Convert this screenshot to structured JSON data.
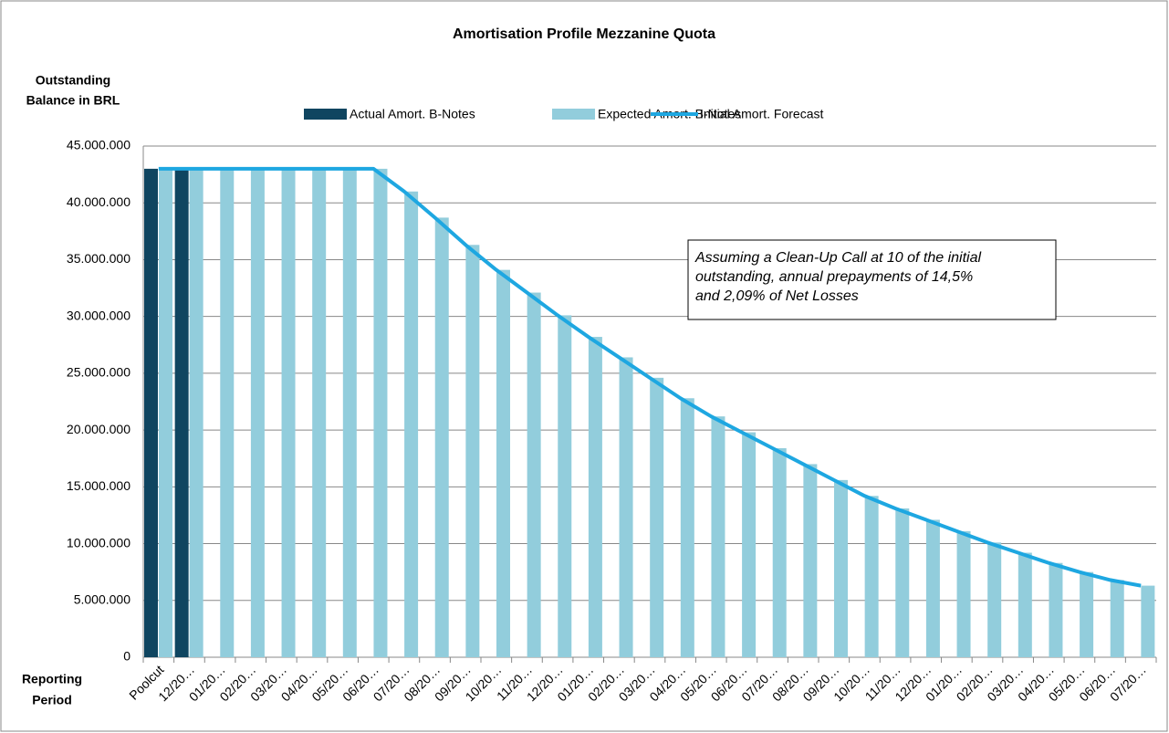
{
  "chart_data": {
    "type": "bar_line",
    "title": "Amortisation Profile Mezzanine Quota",
    "y_axis_label": [
      "Outstanding",
      "Balance in BRL"
    ],
    "x_axis_label": [
      "Reporting",
      "Period"
    ],
    "annotation": [
      "Assuming a Clean-Up Call at 10 of the initial",
      "outstanding, annual prepayments of 14,5%",
      "and 2,09% of Net Losses"
    ],
    "categories": [
      "Poolcut",
      "12/20…",
      "01/20…",
      "02/20…",
      "03/20…",
      "04/20…",
      "05/20…",
      "06/20…",
      "07/20…",
      "08/20…",
      "09/20…",
      "10/20…",
      "11/20…",
      "12/20…",
      "01/20…",
      "02/20…",
      "03/20…",
      "04/20…",
      "05/20…",
      "06/20…",
      "07/20…",
      "08/20…",
      "09/20…",
      "10/20…",
      "11/20…",
      "12/20…",
      "01/20…",
      "02/20…",
      "03/20…",
      "04/20…",
      "05/20…",
      "06/20…",
      "07/20…"
    ],
    "series": [
      {
        "name": "Actual Amort. B-Notes",
        "color": "#0f4560",
        "kind": "bar",
        "values": [
          43000000,
          43000000,
          null,
          null,
          null,
          null,
          null,
          null,
          null,
          null,
          null,
          null,
          null,
          null,
          null,
          null,
          null,
          null,
          null,
          null,
          null,
          null,
          null,
          null,
          null,
          null,
          null,
          null,
          null,
          null,
          null,
          null,
          null
        ]
      },
      {
        "name": "Expected Amort. B-Notes",
        "color": "#92cddc",
        "kind": "bar",
        "values": [
          43000000,
          43000000,
          43000000,
          43000000,
          43000000,
          43000000,
          43000000,
          43000000,
          41000000,
          38700000,
          36300000,
          34100000,
          32100000,
          30100000,
          28200000,
          26400000,
          24600000,
          22800000,
          21200000,
          19800000,
          18400000,
          17000000,
          15600000,
          14200000,
          13100000,
          12100000,
          11100000,
          10100000,
          9200000,
          8300000,
          7500000,
          6800000,
          6300000
        ]
      },
      {
        "name": "Initial Amort. Forecast",
        "color": "#1ea7e1",
        "kind": "line",
        "values": [
          43000000,
          43000000,
          43000000,
          43000000,
          43000000,
          43000000,
          43000000,
          43000000,
          41000000,
          38700000,
          36300000,
          34100000,
          32100000,
          30100000,
          28200000,
          26400000,
          24600000,
          22800000,
          21200000,
          19800000,
          18400000,
          17000000,
          15600000,
          14200000,
          13100000,
          12100000,
          11100000,
          10100000,
          9200000,
          8300000,
          7500000,
          6800000,
          6300000
        ]
      }
    ],
    "ylim": [
      0,
      45000000
    ],
    "yticks": [
      0,
      {
        "value": 5000000,
        "label": "5.000.000"
      },
      {
        "value": 10000000,
        "label": "10.000.000"
      },
      {
        "value": 15000000,
        "label": "15.000.000"
      },
      {
        "value": 20000000,
        "label": "20.000.000"
      },
      {
        "value": 25000000,
        "label": "25.000.000"
      },
      {
        "value": 30000000,
        "label": "30.000.000"
      },
      {
        "value": 35000000,
        "label": "35.000.000"
      },
      {
        "value": 40000000,
        "label": "40.000.000"
      },
      {
        "value": 45000000,
        "label": "45.000.000"
      }
    ],
    "grid": true,
    "legend": "top"
  }
}
